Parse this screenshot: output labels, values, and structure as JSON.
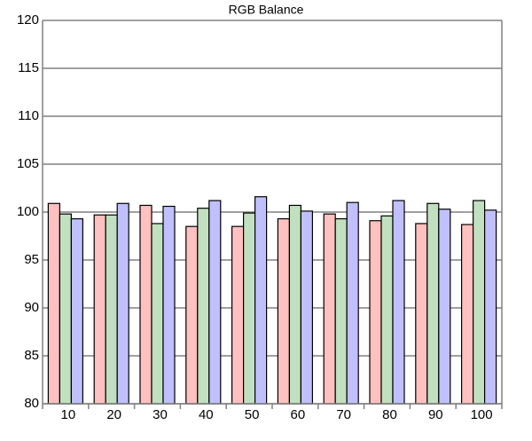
{
  "chart_data": {
    "type": "bar",
    "title": "RGB Balance",
    "categories": [
      "10",
      "20",
      "30",
      "40",
      "50",
      "60",
      "70",
      "80",
      "90",
      "100"
    ],
    "series": [
      {
        "color": "#ffc0c0",
        "values": [
          100.9,
          99.7,
          100.7,
          98.5,
          98.5,
          99.3,
          99.8,
          99.1,
          98.8,
          98.7
        ]
      },
      {
        "color": "#c0e0c0",
        "values": [
          99.8,
          99.7,
          98.8,
          100.4,
          99.9,
          100.7,
          99.3,
          99.6,
          100.9,
          101.2
        ]
      },
      {
        "color": "#c0c0ff",
        "values": [
          99.3,
          100.9,
          100.6,
          101.2,
          101.6,
          100.1,
          101.0,
          101.2,
          100.3,
          100.2
        ]
      }
    ],
    "ylim": [
      80,
      120
    ],
    "yticks": [
      80,
      85,
      90,
      95,
      100,
      105,
      110,
      115,
      120
    ],
    "grid": true
  }
}
